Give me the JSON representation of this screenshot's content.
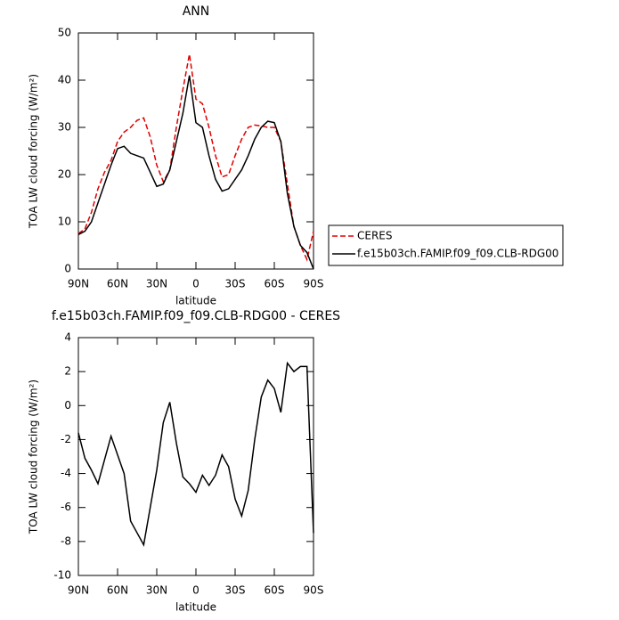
{
  "chart_data": [
    {
      "type": "line",
      "title": "ANN",
      "x_label": "latitude",
      "y_label": "TOA LW cloud forcing (W/m²)",
      "x": [
        90,
        85,
        80,
        75,
        70,
        65,
        60,
        55,
        50,
        45,
        40,
        35,
        30,
        25,
        20,
        15,
        10,
        5,
        0,
        -5,
        -10,
        -15,
        -20,
        -25,
        -30,
        -35,
        -40,
        -45,
        -50,
        -55,
        -60,
        -65,
        -70,
        -75,
        -80,
        -85,
        -90
      ],
      "xlim": [
        90,
        -90
      ],
      "xticks": [
        {
          "value": 90,
          "label": "90N"
        },
        {
          "value": 60,
          "label": "60N"
        },
        {
          "value": 30,
          "label": "30N"
        },
        0,
        {
          "value": -30,
          "label": "30S"
        },
        {
          "value": -60,
          "label": "60S"
        },
        {
          "value": -90,
          "label": "90S"
        }
      ],
      "ylim": [
        0,
        50
      ],
      "yticks": [
        0,
        10,
        20,
        30,
        40,
        50
      ],
      "legend": "right",
      "series": [
        {
          "name": "CERES",
          "color": "#e00000",
          "dashed": true,
          "values": [
            7.5,
            8.5,
            12,
            17,
            20.5,
            23,
            27,
            29,
            30,
            31.5,
            32,
            28,
            22,
            18.5,
            21,
            30,
            38,
            45.5,
            36,
            35,
            30,
            24,
            19.5,
            20,
            24,
            27.5,
            30,
            30.5,
            30.3,
            30,
            30,
            27,
            18,
            9,
            5,
            2,
            8
          ]
        },
        {
          "name": "f.e15b03ch.FAMIP.f09_f09.CLB-RDG00",
          "color": "#000000",
          "dashed": false,
          "values": [
            7.3,
            8,
            10,
            14,
            18,
            22,
            25.5,
            26,
            24.5,
            24,
            23.5,
            20.5,
            17.5,
            18,
            21,
            27,
            33,
            41,
            31,
            30,
            24,
            19,
            16.5,
            17,
            19,
            21,
            24,
            27.5,
            30,
            31.3,
            31,
            27,
            16,
            9,
            5,
            3.5,
            0
          ]
        }
      ]
    },
    {
      "type": "line",
      "title": "f.e15b03ch.FAMIP.f09_f09.CLB-RDG00 - CERES",
      "x_label": "latitude",
      "y_label": "TOA LW cloud forcing (W/m²)",
      "x": [
        90,
        85,
        80,
        75,
        70,
        65,
        60,
        55,
        50,
        45,
        40,
        35,
        30,
        25,
        20,
        15,
        10,
        5,
        0,
        -5,
        -10,
        -15,
        -20,
        -25,
        -30,
        -35,
        -40,
        -45,
        -50,
        -55,
        -60,
        -65,
        -70,
        -75,
        -80,
        -85,
        -90
      ],
      "xlim": [
        90,
        -90
      ],
      "xticks": [
        {
          "value": 90,
          "label": "90N"
        },
        {
          "value": 60,
          "label": "60N"
        },
        {
          "value": 30,
          "label": "30N"
        },
        0,
        {
          "value": -30,
          "label": "30S"
        },
        {
          "value": -60,
          "label": "60S"
        },
        {
          "value": -90,
          "label": "90S"
        }
      ],
      "ylim": [
        -10,
        4
      ],
      "yticks": [
        -10,
        -8,
        -6,
        -4,
        -2,
        0,
        2,
        4
      ],
      "series": [
        {
          "color": "#000000",
          "dashed": false,
          "values": [
            -1.6,
            -3.1,
            -3.8,
            -4.6,
            -3.2,
            -1.8,
            -2.9,
            -4,
            -6.8,
            -7.5,
            -8.2,
            -6,
            -3.8,
            -1,
            0.2,
            -2.2,
            -4.2,
            -4.6,
            -5.1,
            -4.1,
            -4.7,
            -4.1,
            -2.9,
            -3.6,
            -5.5,
            -6.5,
            -5,
            -2,
            0.5,
            1.5,
            1,
            -0.4,
            2.5,
            2,
            2.3,
            2.3,
            -7.5
          ]
        }
      ]
    }
  ]
}
